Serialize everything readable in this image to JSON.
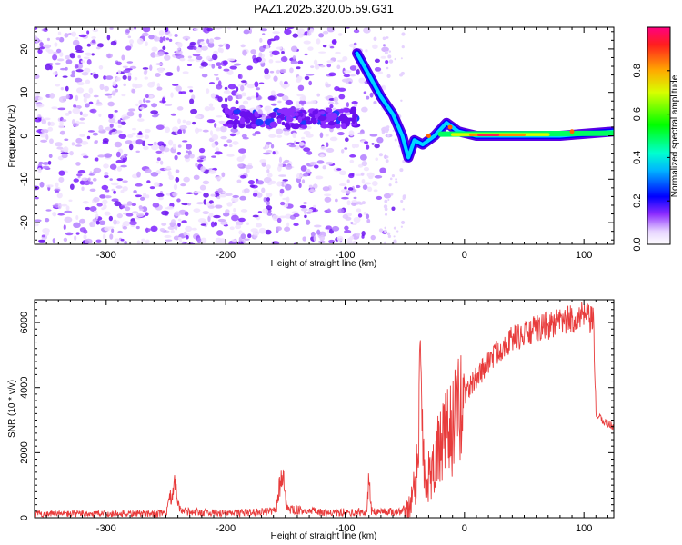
{
  "figure_title": "PAZ1.2025.320.05.59.G31",
  "chart_data": [
    {
      "type": "heatmap",
      "title": "",
      "xlabel": "Height of straight line (km)",
      "ylabel": "Frequency (Hz)",
      "xlim": [
        -360,
        125
      ],
      "ylim": [
        -25,
        25
      ],
      "x_ticks": [
        -300,
        -200,
        -100,
        0,
        100
      ],
      "y_ticks": [
        -20,
        -10,
        0,
        10,
        20
      ],
      "colorbar": {
        "label": "Normalized spectral amplitude",
        "range": [
          0,
          1
        ],
        "ticks": [
          0.0,
          0.2,
          0.4,
          0.6,
          0.8
        ],
        "tick_labels": [
          "0.0",
          "0.2",
          "0.4",
          "0.6",
          "0.8"
        ]
      },
      "ridge": [
        {
          "x": -180,
          "y": 4
        },
        {
          "x": -120,
          "y": 4
        },
        {
          "x": -90,
          "y": 19
        },
        {
          "x": -80,
          "y": 14
        },
        {
          "x": -70,
          "y": 9
        },
        {
          "x": -60,
          "y": 5
        },
        {
          "x": -52,
          "y": 0
        },
        {
          "x": -47,
          "y": -5
        },
        {
          "x": -42,
          "y": -1
        },
        {
          "x": -35,
          "y": -2
        },
        {
          "x": -25,
          "y": 0
        },
        {
          "x": -15,
          "y": 3
        },
        {
          "x": -5,
          "y": 1
        },
        {
          "x": 10,
          "y": 0
        },
        {
          "x": 40,
          "y": 0
        },
        {
          "x": 80,
          "y": 0
        },
        {
          "x": 125,
          "y": 1
        }
      ]
    },
    {
      "type": "line",
      "title": "",
      "xlabel": "Height of straight line (km)",
      "ylabel": "SNR (10 * v/v)",
      "xlim": [
        -360,
        125
      ],
      "ylim": [
        0,
        6700
      ],
      "x_ticks": [
        -300,
        -200,
        -100,
        0,
        100
      ],
      "y_ticks": [
        0,
        2000,
        4000,
        6000
      ],
      "series_color": "#e83c3c",
      "points": [
        {
          "x": -360,
          "y": 120
        },
        {
          "x": -300,
          "y": 120
        },
        {
          "x": -250,
          "y": 130
        },
        {
          "x": -243,
          "y": 1000
        },
        {
          "x": -238,
          "y": 200
        },
        {
          "x": -200,
          "y": 130
        },
        {
          "x": -158,
          "y": 200
        },
        {
          "x": -153,
          "y": 1400
        },
        {
          "x": -148,
          "y": 250
        },
        {
          "x": -110,
          "y": 140
        },
        {
          "x": -82,
          "y": 160
        },
        {
          "x": -80,
          "y": 1200
        },
        {
          "x": -78,
          "y": 200
        },
        {
          "x": -55,
          "y": 180
        },
        {
          "x": -45,
          "y": 400
        },
        {
          "x": -40,
          "y": 1500
        },
        {
          "x": -37,
          "y": 4500
        },
        {
          "x": -33,
          "y": 1000
        },
        {
          "x": -25,
          "y": 1800
        },
        {
          "x": -15,
          "y": 2500
        },
        {
          "x": -5,
          "y": 3200
        },
        {
          "x": 0,
          "y": 3800
        },
        {
          "x": 10,
          "y": 4300
        },
        {
          "x": 20,
          "y": 4800
        },
        {
          "x": 30,
          "y": 5200
        },
        {
          "x": 40,
          "y": 5500
        },
        {
          "x": 50,
          "y": 5600
        },
        {
          "x": 60,
          "y": 5800
        },
        {
          "x": 70,
          "y": 5900
        },
        {
          "x": 80,
          "y": 6000
        },
        {
          "x": 90,
          "y": 6100
        },
        {
          "x": 100,
          "y": 6200
        },
        {
          "x": 108,
          "y": 6000
        },
        {
          "x": 110,
          "y": 3200
        },
        {
          "x": 115,
          "y": 3000
        },
        {
          "x": 125,
          "y": 2800
        }
      ]
    }
  ]
}
